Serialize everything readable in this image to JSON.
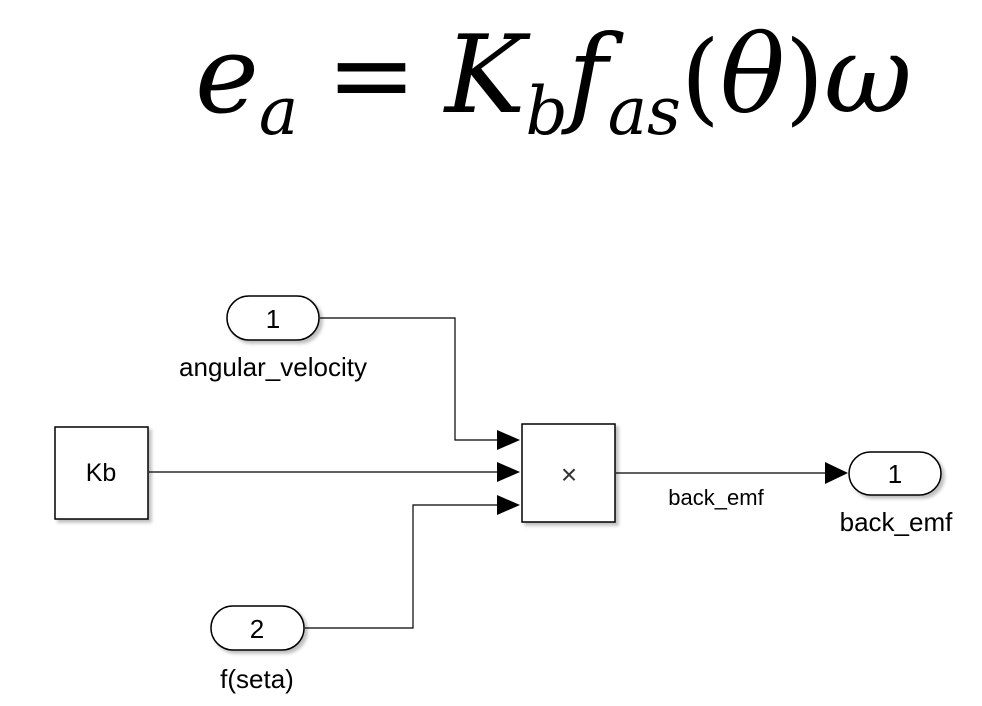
{
  "equation": {
    "lhs": "e",
    "lhs_sub": "a",
    "equals": "=",
    "k": "K",
    "k_sub": "b",
    "f": "f",
    "f_sub": "as",
    "open_paren": "(",
    "theta": "θ",
    "close_paren": ")",
    "omega": "ω"
  },
  "diagram": {
    "inport1": {
      "number": "1",
      "name": "angular_velocity"
    },
    "inport2": {
      "number": "2",
      "name": "f(seta)"
    },
    "constant": {
      "label": "Kb"
    },
    "product": {
      "symbol": "×"
    },
    "signal": {
      "label": "back_emf"
    },
    "outport1": {
      "number": "1",
      "name": "back_emf"
    }
  }
}
